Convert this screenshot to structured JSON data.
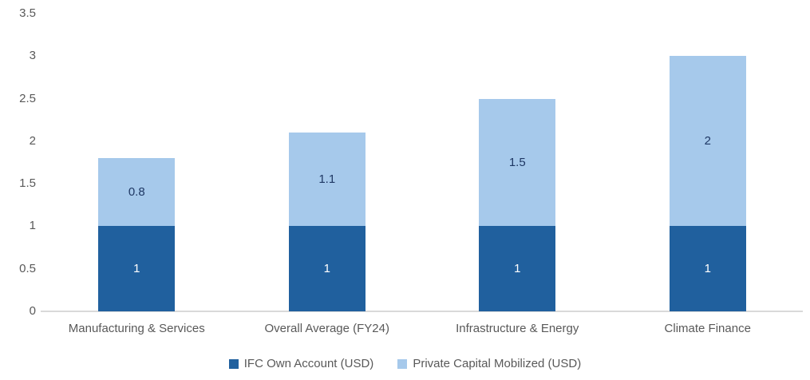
{
  "chart_data": {
    "type": "bar",
    "stacked": true,
    "title": "",
    "xlabel": "",
    "ylabel": "",
    "categories": [
      "Manufacturing & Services",
      "Overall Average (FY24)",
      "Infrastructure & Energy",
      "Climate Finance"
    ],
    "series": [
      {
        "name": "IFC Own Account (USD)",
        "values": [
          1,
          1,
          1,
          1
        ],
        "labels": [
          "1",
          "1",
          "1",
          "1"
        ],
        "color": "#20609E",
        "label_color": "#FFFFFF"
      },
      {
        "name": "Private Capital Mobilized (USD)",
        "values": [
          0.8,
          1.1,
          1.5,
          2
        ],
        "labels": [
          "0.8",
          "1.1",
          "1.5",
          "2"
        ],
        "color": "#A6C9EB",
        "label_color": "#1F3864"
      }
    ],
    "totals": [
      1.8,
      2.1,
      2.5,
      3.0
    ],
    "ylim": [
      0,
      3.5
    ],
    "yticks": [
      0,
      0.5,
      1,
      1.5,
      2,
      2.5,
      3,
      3.5
    ],
    "ytick_labels": [
      "0",
      "0.5",
      "1",
      "1.5",
      "2",
      "2.5",
      "3",
      "3.5"
    ],
    "grid": false,
    "legend_position": "bottom"
  },
  "colors": {
    "axis_line": "#D9D9D9",
    "tick_text": "#595959",
    "category_text": "#595959",
    "legend_text": "#595959",
    "background": "#FFFFFF"
  },
  "legend": {
    "items": [
      {
        "label": "IFC Own Account (USD)",
        "color": "#20609E"
      },
      {
        "label": "Private Capital Mobilized (USD)",
        "color": "#A6C9EB"
      }
    ]
  }
}
